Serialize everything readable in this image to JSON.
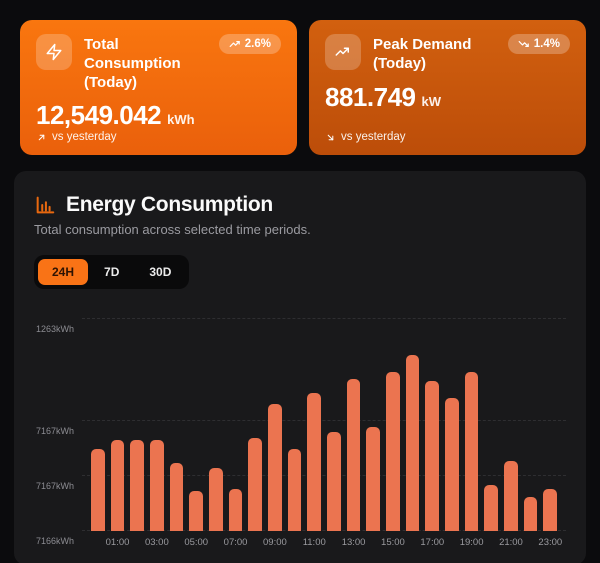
{
  "stats_cards": [
    {
      "title": "Total Consumption (Today)",
      "badge": {
        "direction": "up",
        "label": "2.6%"
      },
      "value": "12,549.042",
      "unit": "kWh",
      "footer": {
        "direction": "up",
        "label": "vs yesterday"
      },
      "colors": {
        "bg_top": "#f9760f",
        "bg_bottom": "#ea600b"
      }
    },
    {
      "title": "Peak Demand (Today)",
      "badge": {
        "direction": "down",
        "label": "1.4%"
      },
      "value": "881.749",
      "unit": "kW",
      "footer": {
        "direction": "down",
        "label": "vs yesterday"
      },
      "colors": {
        "bg_top": "#d2600f",
        "bg_bottom": "#bc4d09"
      }
    }
  ],
  "chart_card": {
    "title": "Energy Consumption",
    "subtitle": "Total consumption across selected time periods.",
    "tabs": [
      {
        "label": "24H",
        "active": true
      },
      {
        "label": "7D",
        "active": false
      },
      {
        "label": "30D",
        "active": false
      }
    ],
    "accent": "#f97316"
  },
  "chart_data": {
    "type": "bar",
    "title": "Energy Consumption (24H view)",
    "x": [
      "00:00",
      "01:00",
      "02:00",
      "03:00",
      "04:00",
      "05:00",
      "06:00",
      "07:00",
      "08:00",
      "09:00",
      "10:00",
      "11:00",
      "12:00",
      "13:00",
      "14:00",
      "15:00",
      "16:00",
      "17:00",
      "18:00",
      "19:00",
      "20:00",
      "21:00",
      "22:00",
      "23:00"
    ],
    "values_pct_of_plot_height": [
      39,
      43,
      43,
      43,
      32,
      19,
      30,
      20,
      44,
      60,
      39,
      65,
      47,
      72,
      49,
      75,
      83,
      71,
      63,
      75,
      22,
      33,
      16,
      20
    ],
    "x_tick_labels_shown": [
      "01:00",
      "03:00",
      "05:00",
      "07:00",
      "09:00",
      "11:00",
      "13:00",
      "15:00",
      "17:00",
      "19:00",
      "21:00",
      "23:00"
    ],
    "y_ticks": [
      {
        "label": "7166kWh",
        "pct": 0
      },
      {
        "label": "7167kWh",
        "pct": 26
      },
      {
        "label": "7167kWh",
        "pct": 52
      },
      {
        "label": "1263kWh",
        "pct": 100
      }
    ],
    "bar_color": "#eb7450",
    "grid": "horizontal dashed",
    "legend": false
  }
}
